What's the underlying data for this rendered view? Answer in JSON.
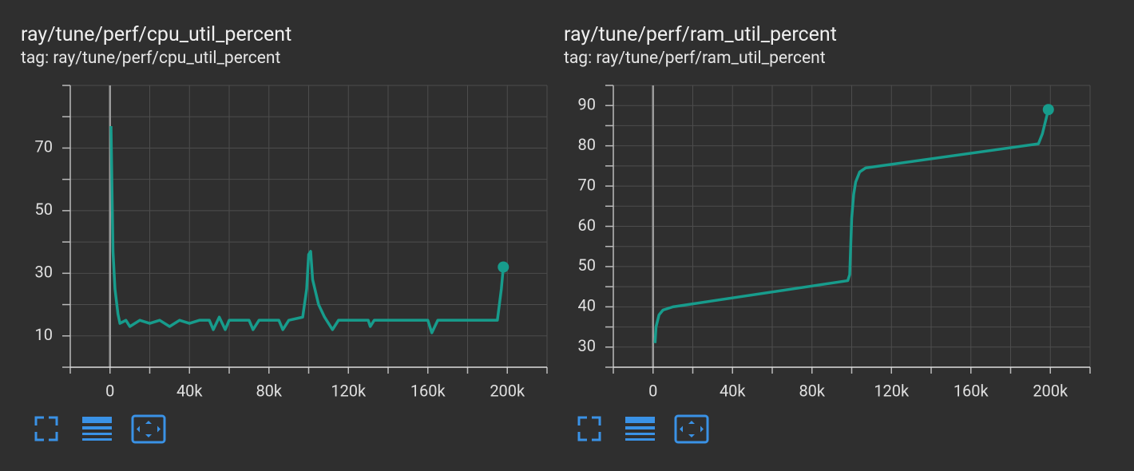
{
  "chart_data": [
    {
      "type": "line",
      "title": "ray/tune/perf/cpu_util_percent",
      "subtitle": "tag: ray/tune/perf/cpu_util_percent",
      "color": "#179c8c",
      "x": [
        500,
        1500,
        2500,
        4000,
        5000,
        8000,
        10000,
        15000,
        20000,
        25000,
        30000,
        35000,
        40000,
        45000,
        50000,
        52000,
        55000,
        58000,
        60000,
        70000,
        72000,
        75000,
        85000,
        87000,
        90000,
        97000,
        99000,
        100000,
        101000,
        102000,
        105000,
        108000,
        110000,
        112000,
        115000,
        130000,
        131000,
        133000,
        160000,
        162000,
        165000,
        195000,
        197000,
        198000
      ],
      "values": [
        77,
        37,
        25,
        17,
        14,
        15,
        13,
        15,
        14,
        15,
        13,
        15,
        14,
        15,
        15,
        12,
        16,
        12,
        15,
        15,
        12,
        15,
        15,
        12,
        15,
        16,
        25,
        36,
        37,
        28,
        20,
        16,
        14,
        12,
        15,
        15,
        13,
        15,
        15,
        11,
        15,
        15,
        25,
        32
      ],
      "xlim": [
        -20000,
        220000
      ],
      "xticks": [
        {
          "value": 0,
          "label": "0"
        },
        {
          "value": 40000,
          "label": "40k"
        },
        {
          "value": 80000,
          "label": "80k"
        },
        {
          "value": 120000,
          "label": "120k"
        },
        {
          "value": 160000,
          "label": "160k"
        },
        {
          "value": 200000,
          "label": "200k"
        }
      ],
      "xminor": [
        -20000,
        20000,
        60000,
        100000,
        140000,
        180000,
        220000
      ],
      "ylim": [
        0,
        90
      ],
      "yticks": [
        10,
        30,
        50,
        70
      ],
      "yminor": [
        0,
        20,
        40,
        60,
        80,
        90
      ],
      "grid": true
    },
    {
      "type": "line",
      "title": "ray/tune/perf/ram_util_percent",
      "subtitle": "tag: ray/tune/perf/ram_util_percent",
      "color": "#179c8c",
      "x": [
        1000,
        1500,
        3000,
        5000,
        10000,
        98000,
        99000,
        100000,
        101000,
        102000,
        104000,
        107000,
        194000,
        196000,
        198000,
        199000
      ],
      "values": [
        31,
        35,
        38,
        39.2,
        40,
        46.5,
        48,
        62,
        68,
        71,
        73.5,
        74.5,
        80.5,
        83,
        87,
        89
      ],
      "xlim": [
        -20000,
        220000
      ],
      "xticks": [
        {
          "value": 0,
          "label": "0"
        },
        {
          "value": 40000,
          "label": "40k"
        },
        {
          "value": 80000,
          "label": "80k"
        },
        {
          "value": 120000,
          "label": "120k"
        },
        {
          "value": 160000,
          "label": "160k"
        },
        {
          "value": 200000,
          "label": "200k"
        }
      ],
      "xminor": [
        -20000,
        20000,
        60000,
        100000,
        140000,
        180000,
        220000
      ],
      "ylim": [
        25,
        95
      ],
      "yticks": [
        30,
        40,
        50,
        60,
        70,
        80,
        90
      ],
      "yminor": [
        25,
        35,
        45,
        55,
        65,
        75,
        85,
        95
      ],
      "grid": true
    }
  ]
}
